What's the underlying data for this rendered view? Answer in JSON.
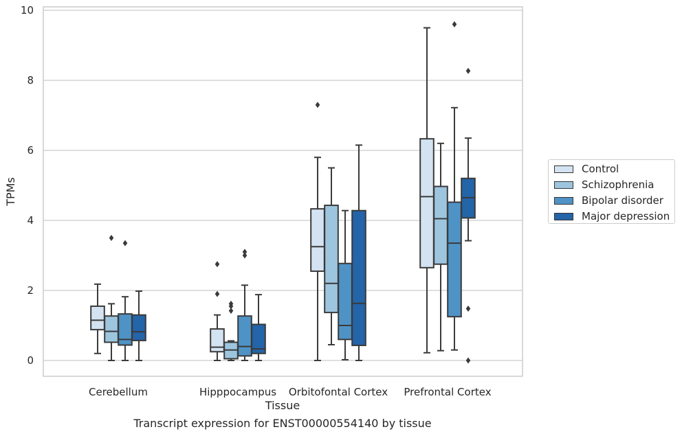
{
  "chart_data": {
    "type": "boxplot",
    "caption": "Transcript expression for ENST00000554140 by tissue",
    "xlabel": "Tissue",
    "ylabel": "TPMs",
    "ylim": [
      -0.45,
      10.1
    ],
    "yticks": [
      0,
      2,
      4,
      6,
      8,
      10
    ],
    "grid": true,
    "legend_position": "right",
    "categories": [
      "Cerebellum",
      "Hipppocampus",
      "Orbitofontal Cortex",
      "Prefrontal Cortex"
    ],
    "series": [
      {
        "name": "Control",
        "color": "#d4e3f1",
        "boxes": [
          {
            "whislo": 0.2,
            "q1": 0.88,
            "med": 1.15,
            "q3": 1.55,
            "whishi": 2.18,
            "fliers": []
          },
          {
            "whislo": 0.0,
            "q1": 0.25,
            "med": 0.38,
            "q3": 0.9,
            "whishi": 1.3,
            "fliers": [
              1.9,
              2.75
            ]
          },
          {
            "whislo": 0.0,
            "q1": 2.55,
            "med": 3.25,
            "q3": 4.33,
            "whishi": 5.8,
            "fliers": [
              7.3
            ]
          },
          {
            "whislo": 0.22,
            "q1": 2.65,
            "med": 4.68,
            "q3": 6.33,
            "whishi": 9.5,
            "fliers": []
          }
        ]
      },
      {
        "name": "Schizophrenia",
        "color": "#9dc5de",
        "boxes": [
          {
            "whislo": 0.0,
            "q1": 0.52,
            "med": 0.83,
            "q3": 1.27,
            "whishi": 1.62,
            "fliers": [
              3.5
            ]
          },
          {
            "whislo": 0.0,
            "q1": 0.05,
            "med": 0.3,
            "q3": 0.52,
            "whishi": 0.56,
            "fliers": [
              1.42,
              1.55,
              1.62
            ]
          },
          {
            "whislo": 0.45,
            "q1": 1.37,
            "med": 2.2,
            "q3": 4.43,
            "whishi": 5.5,
            "fliers": []
          },
          {
            "whislo": 0.28,
            "q1": 2.75,
            "med": 4.05,
            "q3": 4.97,
            "whishi": 6.2,
            "fliers": []
          }
        ]
      },
      {
        "name": "Bipolar disorder",
        "color": "#4f93c6",
        "boxes": [
          {
            "whislo": 0.0,
            "q1": 0.44,
            "med": 0.6,
            "q3": 1.33,
            "whishi": 1.82,
            "fliers": [
              3.35
            ]
          },
          {
            "whislo": 0.0,
            "q1": 0.13,
            "med": 0.4,
            "q3": 1.27,
            "whishi": 2.15,
            "fliers": [
              3.0,
              3.1
            ]
          },
          {
            "whislo": 0.02,
            "q1": 0.6,
            "med": 1.0,
            "q3": 2.77,
            "whishi": 4.28,
            "fliers": []
          },
          {
            "whislo": 0.3,
            "q1": 1.25,
            "med": 3.35,
            "q3": 4.52,
            "whishi": 7.22,
            "fliers": [
              9.6
            ]
          }
        ]
      },
      {
        "name": "Major depression",
        "color": "#2464a8",
        "boxes": [
          {
            "whislo": 0.0,
            "q1": 0.57,
            "med": 0.82,
            "q3": 1.3,
            "whishi": 1.98,
            "fliers": []
          },
          {
            "whislo": 0.0,
            "q1": 0.2,
            "med": 0.33,
            "q3": 1.03,
            "whishi": 1.88,
            "fliers": []
          },
          {
            "whislo": 0.0,
            "q1": 0.43,
            "med": 1.63,
            "q3": 4.28,
            "whishi": 6.15,
            "fliers": []
          },
          {
            "whislo": 3.42,
            "q1": 4.07,
            "med": 4.65,
            "q3": 5.2,
            "whishi": 6.35,
            "fliers": [
              8.27,
              1.48,
              0.0
            ]
          }
        ]
      }
    ]
  }
}
